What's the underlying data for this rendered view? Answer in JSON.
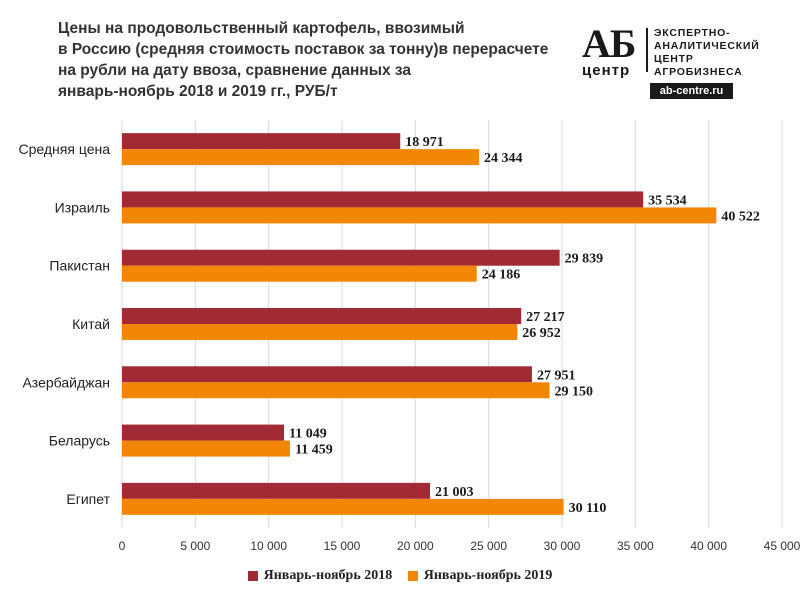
{
  "title_lines": [
    "Цены на продовольственный картофель, ввозимый",
    "в Россию (средняя стоимость поставок за тонну)в перерасчете",
    "на рубли на дату ввоза, сравнение данных за",
    "январь-ноябрь 2018 и 2019 гг., РУБ/т"
  ],
  "logo": {
    "ab": "АБ",
    "centr": "центр",
    "text_lines": [
      "ЭКСПЕРТНО-",
      "АНАЛИТИЧЕСКИЙ",
      "ЦЕНТР",
      "АГРОБИЗНЕСА"
    ],
    "url": "ab-centre.ru"
  },
  "chart_data": {
    "type": "bar",
    "orientation": "horizontal",
    "categories": [
      "Средняя цена",
      "Израиль",
      "Пакистан",
      "Китай",
      "Азербайджан",
      "Беларусь",
      "Египет"
    ],
    "series": [
      {
        "name": "Январь-ноябрь 2018",
        "color": "#a12a35",
        "values": [
          18971,
          35534,
          29839,
          27217,
          27951,
          11049,
          21003
        ],
        "labels": [
          "18 971",
          "35 534",
          "29 839",
          "27 217",
          "27 951",
          "11 049",
          "21 003"
        ]
      },
      {
        "name": "Январь-ноябрь 2019",
        "color": "#f28705",
        "values": [
          24344,
          40522,
          24186,
          26952,
          29150,
          11459,
          30110
        ],
        "labels": [
          "24 344",
          "40 522",
          "24 186",
          "26 952",
          "29 150",
          "11 459",
          "30 110"
        ]
      }
    ],
    "xlim": [
      0,
      45000
    ],
    "xticks": [
      0,
      5000,
      10000,
      15000,
      20000,
      25000,
      30000,
      35000,
      40000,
      45000
    ],
    "xtick_labels": [
      "0",
      "5 000",
      "10 000",
      "15 000",
      "20 000",
      "25 000",
      "30 000",
      "35 000",
      "40 000",
      "45 000"
    ],
    "grid": true,
    "legend_position": "bottom"
  }
}
